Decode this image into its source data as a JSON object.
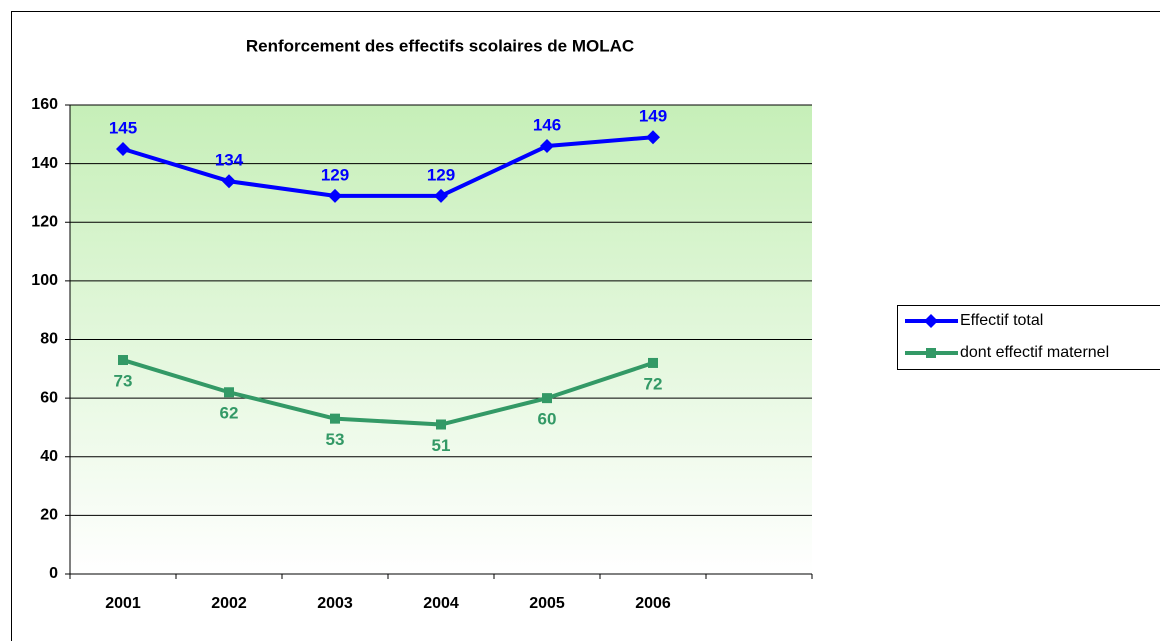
{
  "chart_data": {
    "type": "line",
    "title": "Renforcement des effectifs scolaires de MOLAC",
    "categories": [
      "2001",
      "2002",
      "2003",
      "2004",
      "2005",
      "2006",
      null
    ],
    "series": [
      {
        "name": "Effectif total",
        "color": "#0000ff",
        "marker": "diamond",
        "label_position": "above",
        "values": [
          145,
          134,
          129,
          129,
          146,
          149,
          null
        ]
      },
      {
        "name": "dont effectif maternel",
        "color": "#339966",
        "marker": "square",
        "label_position": "below",
        "values": [
          73,
          62,
          53,
          51,
          60,
          72,
          null
        ]
      }
    ],
    "ylim": [
      0,
      160
    ],
    "yticks": [
      0,
      20,
      40,
      60,
      80,
      100,
      120,
      140,
      160
    ],
    "grid": true,
    "legend": "right"
  }
}
